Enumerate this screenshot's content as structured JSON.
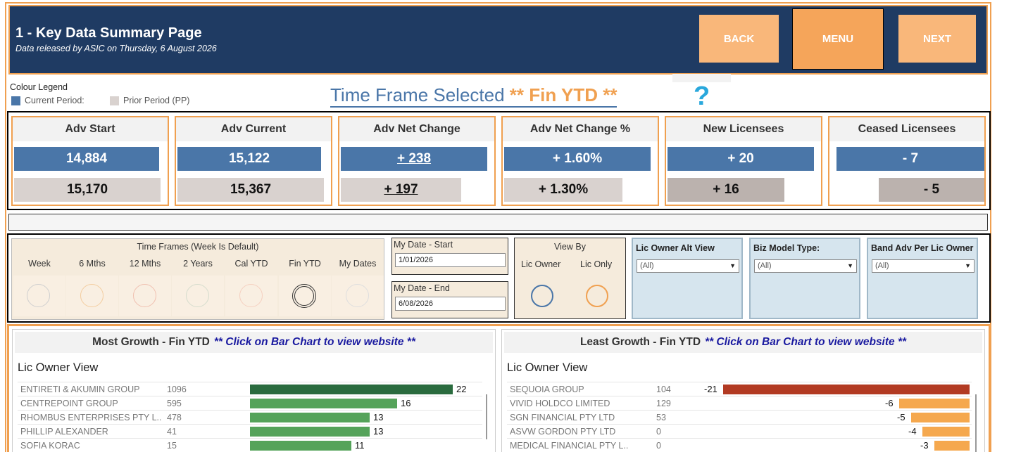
{
  "header": {
    "title": "1 - Key Data Summary Page",
    "subtitle": "Data released by ASIC on Thursday, 6 August 2026",
    "buttons": {
      "back": "BACK",
      "menu": "MENU",
      "next": "NEXT"
    }
  },
  "legend": {
    "title": "Colour Legend",
    "current": "Current Period:",
    "prior": "Prior Period (PP)",
    "colors": {
      "current": "#4a76a8",
      "prior": "#d9d2cf"
    }
  },
  "time_frame": {
    "label": "Time Frame Selected",
    "value": "** Fin YTD **",
    "help": "?"
  },
  "kpis": [
    {
      "title": "Adv Start",
      "current": "14,884",
      "prior": "15,170"
    },
    {
      "title": "Adv Current",
      "current": "15,122",
      "prior": "15,367"
    },
    {
      "title": "Adv Net Change",
      "current": "+ 238",
      "prior": "+ 197"
    },
    {
      "title": "Adv Net Change %",
      "current": "+ 1.60%",
      "prior": "+ 1.30%"
    },
    {
      "title": "New Licensees",
      "current": "+ 20",
      "prior": "+ 16"
    },
    {
      "title": "Ceased Licensees",
      "current": "- 7",
      "prior": "- 5"
    }
  ],
  "filters": {
    "time_frames": {
      "title": "Time Frames (Week Is Default)",
      "options": [
        "Week",
        "6 Mths",
        "12 Mths",
        "2 Years",
        "Cal YTD",
        "Fin YTD",
        "My Dates"
      ],
      "selected": "Fin YTD"
    },
    "date_start": {
      "label": "My Date - Start",
      "value": "1/01/2026"
    },
    "date_end": {
      "label": "My Date - End",
      "value": "6/08/2026"
    },
    "view_by": {
      "title": "View By",
      "options": [
        "Lic Owner",
        "Lic Only"
      ]
    },
    "dropdowns": [
      {
        "title": "Lic Owner Alt View",
        "value": "(All)"
      },
      {
        "title": "Biz Model Type:",
        "value": "(All)"
      },
      {
        "title": "Band Adv Per Lic Owner",
        "value": "(All)"
      }
    ]
  },
  "most_growth": {
    "title": "Most Growth - Fin YTD",
    "note": "** Click on Bar Chart to view website **",
    "view": "Lic Owner View",
    "rows": [
      {
        "name": "ENTIRETI & AKUMIN GROUP",
        "count": "1096",
        "value": 22
      },
      {
        "name": "CENTREPOINT GROUP",
        "count": "595",
        "value": 16
      },
      {
        "name": "RHOMBUS ENTERPRISES PTY L..",
        "count": "478",
        "value": 13
      },
      {
        "name": "PHILLIP  ALEXANDER",
        "count": "41",
        "value": 13
      },
      {
        "name": "SOFIA  KORAC",
        "count": "15",
        "value": 11
      }
    ]
  },
  "least_growth": {
    "title": "Least Growth - Fin YTD",
    "note": "** Click on Bar Chart to view website **",
    "view": "Lic Owner View",
    "rows": [
      {
        "name": "SEQUOIA GROUP",
        "count": "104",
        "value": -21
      },
      {
        "name": "VIVID HOLDCO LIMITED",
        "count": "129",
        "value": -6
      },
      {
        "name": "SGN FINANCIAL PTY LTD",
        "count": "53",
        "value": -5
      },
      {
        "name": "ASVW GORDON PTY LTD",
        "count": "0",
        "value": -4
      },
      {
        "name": "MEDICAL FINANCIAL PTY L..",
        "count": "0",
        "value": -3
      }
    ]
  }
}
